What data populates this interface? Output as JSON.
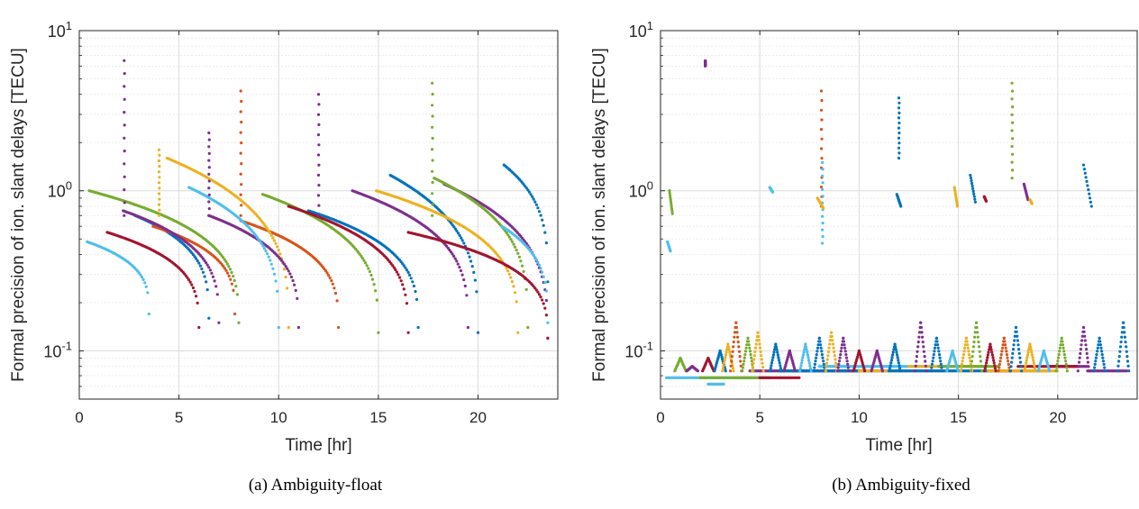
{
  "chart_data": [
    {
      "type": "scatter",
      "panel_label": "(a)",
      "caption": "(a)  Ambiguity-float",
      "xlabel": "Time [hr]",
      "ylabel": "Formal precision of ion. slant delays [TECU]",
      "xlim": [
        0,
        24
      ],
      "ylim": [
        0.05,
        10
      ],
      "yscale": "log",
      "xticks": [
        "0",
        "5",
        "10",
        "15",
        "20"
      ],
      "xtick_values": [
        0,
        5,
        10,
        15,
        20
      ],
      "yticks": [
        "10-1",
        "100",
        "101"
      ],
      "ytick_values": [
        0.1,
        1,
        10
      ],
      "grid": true,
      "series": [
        {
          "color": "#0072BD",
          "tracks": [
            [
              2.8,
              0.7,
              6.5,
              0.16
            ],
            [
              11.5,
              0.75,
              17.0,
              0.14
            ],
            [
              15.6,
              1.25,
              20.0,
              0.13
            ],
            [
              21.3,
              1.45,
              23.5,
              0.27
            ]
          ]
        },
        {
          "color": "#D95319",
          "tracks": [
            [
              3.7,
              0.6,
              7.8,
              0.17
            ],
            [
              8.1,
              0.65,
              13.0,
              0.14
            ]
          ]
        },
        {
          "color": "#EDB120",
          "tracks": [
            [
              4.4,
              1.6,
              10.5,
              0.14
            ],
            [
              14.9,
              1.0,
              22.0,
              0.13
            ]
          ]
        },
        {
          "color": "#7E2F8E",
          "tracks": [
            [
              2.2,
              0.75,
              7.0,
              0.15
            ],
            [
              6.5,
              0.7,
              11.0,
              0.14
            ],
            [
              13.7,
              1.0,
              19.5,
              0.14
            ],
            [
              18.3,
              1.1,
              23.5,
              0.12
            ]
          ]
        },
        {
          "color": "#77AC30",
          "tracks": [
            [
              0.5,
              1.0,
              8.0,
              0.15
            ],
            [
              9.2,
              0.95,
              15.0,
              0.13
            ],
            [
              17.8,
              1.2,
              22.5,
              0.14
            ]
          ]
        },
        {
          "color": "#4DBEEE",
          "tracks": [
            [
              0.4,
              0.48,
              3.5,
              0.17
            ],
            [
              5.5,
              1.05,
              10.0,
              0.14
            ],
            [
              21.2,
              0.6,
              23.5,
              0.15
            ]
          ]
        },
        {
          "color": "#A2142F",
          "tracks": [
            [
              1.4,
              0.55,
              6.0,
              0.14
            ],
            [
              10.5,
              0.8,
              16.5,
              0.13
            ],
            [
              16.5,
              0.55,
              23.5,
              0.12
            ]
          ]
        }
      ],
      "spikes": [
        {
          "x": 2.25,
          "color": "#7E2F8E",
          "top": 6.5
        },
        {
          "x": 8.1,
          "color": "#D95319",
          "top": 4.2
        },
        {
          "x": 12.0,
          "color": "#7E2F8E",
          "top": 4.0
        },
        {
          "x": 17.7,
          "color": "#77AC30",
          "top": 4.7
        },
        {
          "x": 4.0,
          "color": "#EDB120",
          "top": 1.8
        },
        {
          "x": 6.5,
          "color": "#7E2F8E",
          "top": 2.3
        }
      ]
    },
    {
      "type": "scatter",
      "panel_label": "(b)",
      "caption": "(b)  Ambiguity-fixed",
      "xlabel": "Time [hr]",
      "ylabel": "Formal precision of ion. slant delays [TECU]",
      "xlim": [
        0,
        24
      ],
      "ylim": [
        0.05,
        10
      ],
      "yscale": "log",
      "xticks": [
        "0",
        "5",
        "10",
        "15",
        "20"
      ],
      "xtick_values": [
        0,
        5,
        10,
        15,
        20
      ],
      "yticks": [
        "10-1",
        "100",
        "101"
      ],
      "ytick_values": [
        0.1,
        1,
        10
      ],
      "grid": true,
      "baseline_levels": [
        {
          "color": "#4DBEEE",
          "y": 0.068,
          "x": [
            0.3,
            5.5
          ]
        },
        {
          "color": "#77AC30",
          "y": 0.068,
          "x": [
            2.0,
            5.5
          ]
        },
        {
          "color": "#7E2F8E",
          "y": 0.075,
          "x": [
            4.5,
            10.0
          ]
        },
        {
          "color": "#0072BD",
          "y": 0.075,
          "x": [
            6.0,
            11.5
          ]
        },
        {
          "color": "#A2142F",
          "y": 0.068,
          "x": [
            5.0,
            7.0
          ]
        },
        {
          "color": "#EDB120",
          "y": 0.075,
          "x": [
            10.0,
            14.5
          ]
        },
        {
          "color": "#0072BD",
          "y": 0.075,
          "x": [
            11.5,
            17.5
          ]
        },
        {
          "color": "#4DBEEE",
          "y": 0.08,
          "x": [
            8.0,
            13.5
          ]
        },
        {
          "color": "#EDB120",
          "y": 0.08,
          "x": [
            12.5,
            16.5
          ]
        },
        {
          "color": "#77AC30",
          "y": 0.08,
          "x": [
            14.0,
            17.0
          ]
        },
        {
          "color": "#D95319",
          "y": 0.075,
          "x": [
            17.0,
            19.5
          ]
        },
        {
          "color": "#EDB120",
          "y": 0.075,
          "x": [
            16.5,
            20.0
          ]
        },
        {
          "color": "#7E2F8E",
          "y": 0.08,
          "x": [
            19.5,
            21.5
          ]
        },
        {
          "color": "#A2142F",
          "y": 0.08,
          "x": [
            18.0,
            21.0
          ]
        },
        {
          "color": "#7E2F8E",
          "y": 0.075,
          "x": [
            21.5,
            23.5
          ]
        },
        {
          "color": "#4DBEEE",
          "y": 0.062,
          "x": [
            2.4,
            3.2
          ]
        }
      ],
      "bumps": [
        {
          "x": 1.0,
          "color": "#77AC30",
          "peak": 0.09
        },
        {
          "x": 1.6,
          "color": "#7E2F8E",
          "peak": 0.08
        },
        {
          "x": 2.4,
          "color": "#A2142F",
          "peak": 0.09
        },
        {
          "x": 3.0,
          "color": "#0072BD",
          "peak": 0.1
        },
        {
          "x": 3.4,
          "color": "#EDB120",
          "peak": 0.11
        },
        {
          "x": 3.8,
          "color": "#D95319",
          "peak": 0.15
        },
        {
          "x": 4.4,
          "color": "#77AC30",
          "peak": 0.12
        },
        {
          "x": 4.9,
          "color": "#EDB120",
          "peak": 0.13
        },
        {
          "x": 5.8,
          "color": "#0072BD",
          "peak": 0.11
        },
        {
          "x": 6.5,
          "color": "#7E2F8E",
          "peak": 0.1
        },
        {
          "x": 7.3,
          "color": "#4DBEEE",
          "peak": 0.11
        },
        {
          "x": 8.0,
          "color": "#0072BD",
          "peak": 0.12
        },
        {
          "x": 8.6,
          "color": "#EDB120",
          "peak": 0.13
        },
        {
          "x": 9.2,
          "color": "#7E2F8E",
          "peak": 0.12
        },
        {
          "x": 10.0,
          "color": "#A2142F",
          "peak": 0.1
        },
        {
          "x": 10.9,
          "color": "#7E2F8E",
          "peak": 0.1
        },
        {
          "x": 11.8,
          "color": "#0072BD",
          "peak": 0.11
        },
        {
          "x": 13.1,
          "color": "#7E2F8E",
          "peak": 0.15
        },
        {
          "x": 13.9,
          "color": "#0072BD",
          "peak": 0.12
        },
        {
          "x": 14.7,
          "color": "#4DBEEE",
          "peak": 0.1
        },
        {
          "x": 15.4,
          "color": "#EDB120",
          "peak": 0.12
        },
        {
          "x": 15.9,
          "color": "#77AC30",
          "peak": 0.15
        },
        {
          "x": 16.6,
          "color": "#A2142F",
          "peak": 0.11
        },
        {
          "x": 17.3,
          "color": "#D95319",
          "peak": 0.12
        },
        {
          "x": 17.9,
          "color": "#0072BD",
          "peak": 0.14
        },
        {
          "x": 18.6,
          "color": "#EDB120",
          "peak": 0.11
        },
        {
          "x": 19.3,
          "color": "#4DBEEE",
          "peak": 0.1
        },
        {
          "x": 20.2,
          "color": "#77AC30",
          "peak": 0.12
        },
        {
          "x": 21.3,
          "color": "#7E2F8E",
          "peak": 0.14
        },
        {
          "x": 22.1,
          "color": "#0072BD",
          "peak": 0.12
        },
        {
          "x": 23.3,
          "color": "#0072BD",
          "peak": 0.15
        }
      ],
      "short_tracks": [
        {
          "x0": 0.45,
          "y0": 1.0,
          "x1": 0.6,
          "y1": 0.72,
          "color": "#77AC30"
        },
        {
          "x0": 0.35,
          "y0": 0.48,
          "x1": 0.5,
          "y1": 0.42,
          "color": "#4DBEEE"
        },
        {
          "x0": 5.5,
          "y0": 1.05,
          "x1": 5.65,
          "y1": 0.98,
          "color": "#4DBEEE"
        },
        {
          "x0": 14.8,
          "y0": 1.05,
          "x1": 14.95,
          "y1": 0.8,
          "color": "#EDB120"
        },
        {
          "x0": 15.6,
          "y0": 1.25,
          "x1": 15.85,
          "y1": 0.85,
          "color": "#0072BD"
        },
        {
          "x0": 16.3,
          "y0": 0.92,
          "x1": 16.4,
          "y1": 0.86,
          "color": "#A2142F"
        },
        {
          "x0": 18.3,
          "y0": 1.1,
          "x1": 18.5,
          "y1": 0.88,
          "color": "#7E2F8E"
        },
        {
          "x0": 18.6,
          "y0": 0.88,
          "x1": 18.7,
          "y1": 0.83,
          "color": "#EDB120"
        },
        {
          "x0": 21.3,
          "y0": 1.45,
          "x1": 21.7,
          "y1": 0.8,
          "color": "#0072BD"
        },
        {
          "x0": 7.9,
          "y0": 0.9,
          "x1": 8.2,
          "y1": 0.78,
          "color": "#EDB120"
        },
        {
          "x0": 11.9,
          "y0": 0.95,
          "x1": 12.1,
          "y1": 0.8,
          "color": "#0072BD"
        }
      ],
      "spikes": [
        {
          "x": 2.25,
          "color": "#7E2F8E",
          "top": 6.5,
          "bottom": 6.0
        },
        {
          "x": 8.1,
          "color": "#D95319",
          "top": 4.2,
          "bottom": 0.8
        },
        {
          "x": 8.15,
          "color": "#4DBEEE",
          "top": 1.5,
          "bottom": 0.47
        },
        {
          "x": 12.0,
          "color": "#0072BD",
          "top": 3.8,
          "bottom": 1.6
        },
        {
          "x": 17.7,
          "color": "#77AC30",
          "top": 4.7,
          "bottom": 1.2
        }
      ]
    }
  ]
}
